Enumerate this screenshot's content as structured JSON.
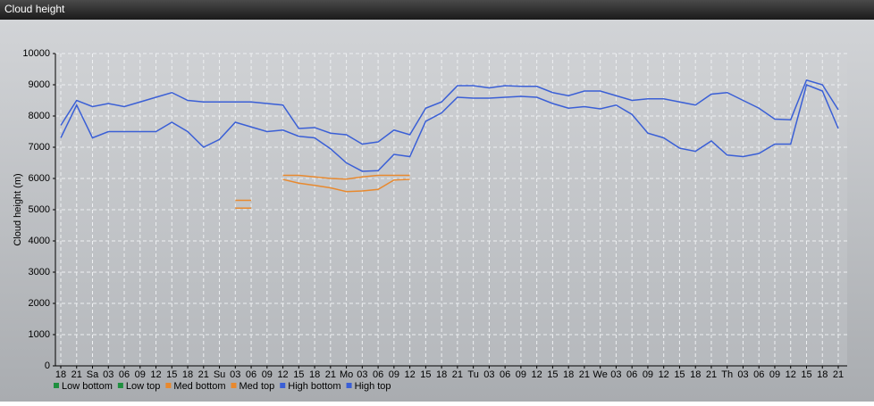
{
  "chart_data": {
    "type": "line",
    "title": "Cloud height",
    "ylabel": "Cloud height (m)",
    "categories": [
      "18",
      "21",
      "Sa",
      "03",
      "06",
      "09",
      "12",
      "15",
      "18",
      "21",
      "Su",
      "03",
      "06",
      "09",
      "12",
      "15",
      "18",
      "21",
      "Mo",
      "03",
      "06",
      "09",
      "12",
      "15",
      "18",
      "21",
      "Tu",
      "03",
      "06",
      "09",
      "12",
      "15",
      "18",
      "21",
      "We",
      "03",
      "06",
      "09",
      "12",
      "15",
      "18",
      "21",
      "Th",
      "03",
      "06",
      "09",
      "12",
      "15",
      "18",
      "21"
    ],
    "ylim": [
      0,
      10000
    ],
    "yticks": [
      0,
      1000,
      2000,
      3000,
      4000,
      5000,
      6000,
      7000,
      8000,
      9000,
      10000
    ],
    "grid": true,
    "series": [
      {
        "name": "Low bottom",
        "color": "#1f8f3f",
        "values": [
          null,
          null,
          null,
          null,
          null,
          null,
          null,
          null,
          null,
          null,
          null,
          null,
          null,
          null,
          null,
          null,
          null,
          null,
          null,
          null,
          null,
          null,
          null,
          null,
          null,
          null,
          null,
          null,
          null,
          null,
          null,
          null,
          null,
          null,
          null,
          null,
          null,
          null,
          null,
          null,
          null,
          null,
          null,
          null,
          null,
          null,
          null,
          null,
          null,
          null
        ]
      },
      {
        "name": "Low top",
        "color": "#1f8f3f",
        "values": [
          null,
          null,
          null,
          null,
          null,
          null,
          null,
          null,
          null,
          null,
          null,
          null,
          null,
          null,
          null,
          null,
          null,
          null,
          null,
          null,
          null,
          null,
          null,
          null,
          null,
          null,
          null,
          null,
          null,
          null,
          null,
          null,
          null,
          null,
          null,
          null,
          null,
          null,
          null,
          null,
          null,
          null,
          null,
          null,
          null,
          null,
          null,
          null,
          null,
          null
        ]
      },
      {
        "name": "Med bottom",
        "color": "#e8892e",
        "values": [
          null,
          null,
          null,
          null,
          null,
          null,
          null,
          null,
          null,
          null,
          null,
          5050,
          5050,
          null,
          5970,
          5850,
          5780,
          5700,
          5580,
          5600,
          5650,
          5950,
          5970,
          null,
          null,
          null,
          null,
          null,
          null,
          null,
          null,
          null,
          null,
          null,
          null,
          null,
          null,
          null,
          null,
          null,
          null,
          null,
          null,
          null,
          null,
          null,
          null,
          null,
          null,
          null
        ]
      },
      {
        "name": "Med top",
        "color": "#e8892e",
        "values": [
          null,
          null,
          null,
          null,
          null,
          null,
          null,
          null,
          null,
          null,
          null,
          5300,
          5300,
          null,
          6100,
          6100,
          6050,
          6000,
          5980,
          6050,
          6100,
          6100,
          6100,
          null,
          null,
          null,
          null,
          null,
          null,
          null,
          null,
          null,
          null,
          null,
          null,
          null,
          null,
          null,
          null,
          null,
          null,
          null,
          null,
          null,
          null,
          null,
          null,
          null,
          null,
          null
        ]
      },
      {
        "name": "High bottom",
        "color": "#3a5fd6",
        "values": [
          7300,
          8350,
          7300,
          7500,
          7500,
          7500,
          7500,
          7800,
          7500,
          7000,
          7250,
          7800,
          7650,
          7500,
          7550,
          7350,
          7300,
          6950,
          6500,
          6230,
          6250,
          6770,
          6700,
          7830,
          8100,
          8600,
          8570,
          8570,
          8600,
          8630,
          8600,
          8400,
          8250,
          8300,
          8230,
          8350,
          8050,
          7450,
          7300,
          6970,
          6870,
          7200,
          6750,
          6700,
          6800,
          7100,
          7100,
          9000,
          8800,
          7600
        ]
      },
      {
        "name": "High top",
        "color": "#3a5fd6",
        "values": [
          7700,
          8500,
          8300,
          8400,
          8300,
          8450,
          8600,
          8750,
          8500,
          8450,
          8450,
          8450,
          8450,
          8400,
          8350,
          7600,
          7630,
          7450,
          7400,
          7100,
          7170,
          7550,
          7400,
          8250,
          8450,
          8970,
          8970,
          8900,
          8970,
          8950,
          8950,
          8750,
          8650,
          8800,
          8800,
          8650,
          8500,
          8550,
          8550,
          8450,
          8350,
          8700,
          8750,
          8500,
          8250,
          7900,
          7880,
          9150,
          9000,
          8200
        ]
      }
    ]
  }
}
